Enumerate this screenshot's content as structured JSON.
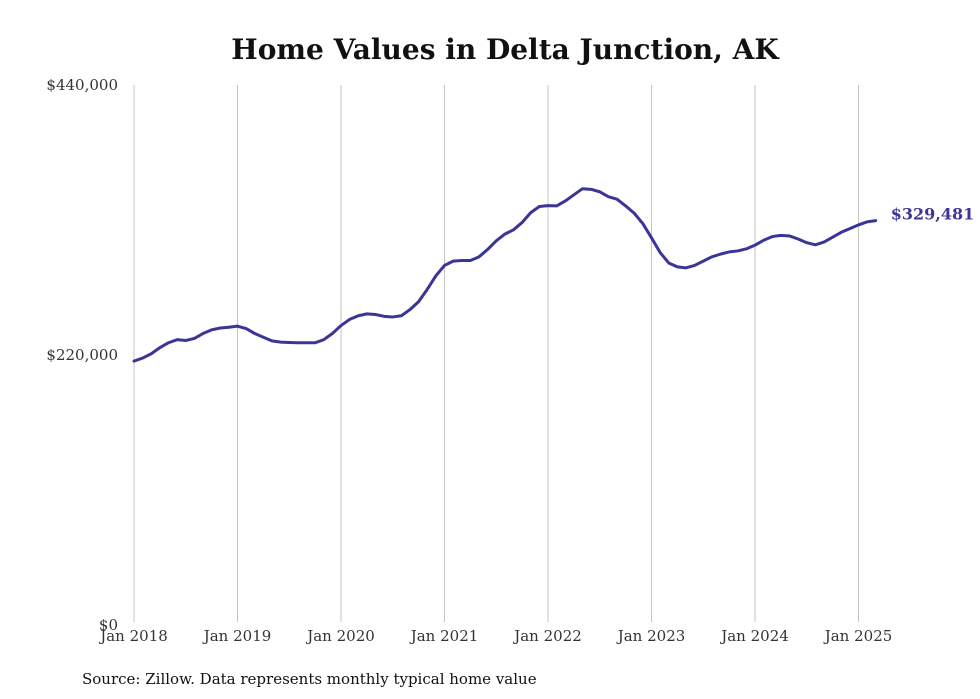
{
  "chart_data": {
    "type": "line",
    "title": "Home Values in Delta Junction, AK",
    "source_note": "Source: Zillow. Data represents monthly typical home value",
    "ylim": [
      0,
      440000
    ],
    "y_ticks": [
      0,
      220000,
      440000
    ],
    "y_tick_labels": [
      "$0",
      "$220,000",
      "$440,000"
    ],
    "x_ticks": [
      "2018-01",
      "2019-01",
      "2020-01",
      "2021-01",
      "2022-01",
      "2023-01",
      "2024-01",
      "2025-01"
    ],
    "x_tick_labels": [
      "Jan 2018",
      "Jan 2019",
      "Jan 2020",
      "Jan 2021",
      "Jan 2022",
      "Jan 2023",
      "Jan 2024",
      "Jan 2025"
    ],
    "grid": "vertical",
    "line_color": "#3a3596",
    "end_label": "$329,481",
    "series": [
      {
        "x": [
          "2018-01",
          "2018-02",
          "2018-03",
          "2018-04",
          "2018-05",
          "2018-06",
          "2018-07",
          "2018-08",
          "2018-09",
          "2018-10",
          "2018-11",
          "2018-12",
          "2019-01",
          "2019-02",
          "2019-03",
          "2019-04",
          "2019-05",
          "2019-06",
          "2019-07",
          "2019-08",
          "2019-09",
          "2019-10",
          "2019-11",
          "2019-12",
          "2020-01",
          "2020-02",
          "2020-03",
          "2020-04",
          "2020-05",
          "2020-06",
          "2020-07",
          "2020-08",
          "2020-09",
          "2020-10",
          "2020-11",
          "2020-12",
          "2021-01",
          "2021-02",
          "2021-03",
          "2021-04",
          "2021-05",
          "2021-06",
          "2021-07",
          "2021-08",
          "2021-09",
          "2021-10",
          "2021-11",
          "2021-12",
          "2022-01",
          "2022-02",
          "2022-03",
          "2022-04",
          "2022-05",
          "2022-06",
          "2022-07",
          "2022-08",
          "2022-09",
          "2022-10",
          "2022-11",
          "2022-12",
          "2023-01",
          "2023-02",
          "2023-03",
          "2023-04",
          "2023-05",
          "2023-06",
          "2023-07",
          "2023-08",
          "2023-09",
          "2023-10",
          "2023-11",
          "2023-12",
          "2024-01",
          "2024-02",
          "2024-03",
          "2024-04",
          "2024-05",
          "2024-06",
          "2024-07",
          "2024-08",
          "2024-09",
          "2024-10",
          "2024-11",
          "2024-12",
          "2025-01",
          "2025-02",
          "2025-03"
        ],
        "values": [
          215000,
          217500,
          221000,
          226000,
          230000,
          232500,
          231800,
          233500,
          237500,
          240500,
          242000,
          242600,
          243500,
          241500,
          237500,
          234500,
          231500,
          230500,
          230200,
          230000,
          230000,
          230000,
          232500,
          237500,
          244000,
          249000,
          252000,
          253500,
          253000,
          251500,
          251000,
          252000,
          257000,
          263500,
          273500,
          284500,
          293000,
          296500,
          297000,
          297000,
          300000,
          306000,
          313000,
          318500,
          322000,
          328000,
          336000,
          341000,
          341700,
          341500,
          345500,
          350500,
          355500,
          355000,
          353000,
          349000,
          347000,
          341500,
          335500,
          327000,
          315500,
          303500,
          295000,
          291800,
          291000,
          293000,
          296500,
          300000,
          302200,
          304000,
          304800,
          306500,
          309500,
          313500,
          316500,
          317500,
          317000,
          314500,
          311500,
          309800,
          312000,
          316000,
          320000,
          323000,
          326000,
          328500,
          329481
        ]
      }
    ]
  }
}
